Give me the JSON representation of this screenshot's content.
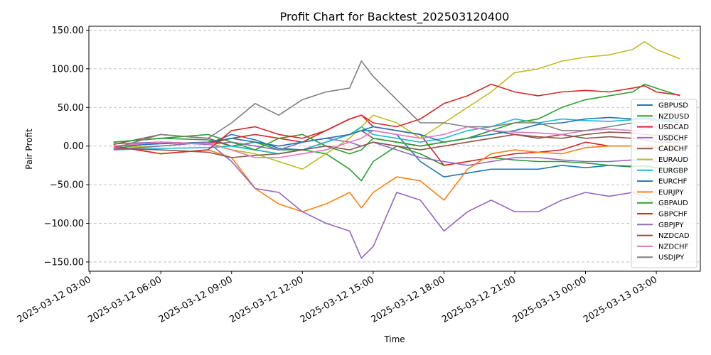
{
  "chart_data": {
    "type": "line",
    "title": "Profit Chart for Backtest_202503120400",
    "xlabel": "Time",
    "ylabel": "Pair Profit",
    "xlim": [
      "2025-03-12 02:57",
      "2025-03-13 04:52"
    ],
    "ylim": [
      -162,
      155
    ],
    "grid": "y",
    "legend": "right",
    "x_ticks": [
      "2025-03-12 03:00",
      "2025-03-12 06:00",
      "2025-03-12 09:00",
      "2025-03-12 12:00",
      "2025-03-12 15:00",
      "2025-03-12 18:00",
      "2025-03-12 21:00",
      "2025-03-13 00:00",
      "2025-03-13 03:00"
    ],
    "y_ticks": [
      "150.00",
      "100.00",
      "50.00",
      "0.00",
      "−50.00",
      "−100.00",
      "−150.00"
    ],
    "y_tick_values": [
      150,
      100,
      50,
      0,
      -50,
      -100,
      -150
    ],
    "x": [
      "2025-03-12 04:00",
      "2025-03-12 06:00",
      "2025-03-12 08:00",
      "2025-03-12 09:00",
      "2025-03-12 10:00",
      "2025-03-12 11:00",
      "2025-03-12 12:00",
      "2025-03-12 13:00",
      "2025-03-12 14:00",
      "2025-03-12 14:30",
      "2025-03-12 15:00",
      "2025-03-12 16:00",
      "2025-03-12 17:00",
      "2025-03-12 18:00",
      "2025-03-12 19:00",
      "2025-03-12 20:00",
      "2025-03-12 21:00",
      "2025-03-12 22:00",
      "2025-03-12 23:00",
      "2025-03-13 00:00",
      "2025-03-13 01:00",
      "2025-03-13 02:00",
      "2025-03-13 02:30",
      "2025-03-13 03:00",
      "2025-03-13 04:00"
    ],
    "series": [
      {
        "name": "GBPUSD",
        "color": "#1f77b4",
        "values": [
          -3,
          5,
          3,
          15,
          8,
          -3,
          -5,
          5,
          15,
          20,
          20,
          15,
          -20,
          -40,
          -35,
          -30,
          -30,
          -30,
          -25,
          -28,
          -25,
          -27,
          -25,
          -28,
          -30
        ]
      },
      {
        "name": "NZDUSD",
        "color": "#2ca02c",
        "values": [
          5,
          10,
          8,
          0,
          5,
          -5,
          -5,
          -10,
          -30,
          -45,
          -20,
          0,
          -10,
          -25,
          -20,
          -15,
          -18,
          -20,
          -20,
          -22,
          -25,
          -26,
          -27,
          -28,
          -30
        ]
      },
      {
        "name": "USDCAD",
        "color": "#d62728",
        "values": [
          0,
          5,
          3,
          10,
          15,
          10,
          5,
          20,
          35,
          40,
          25,
          20,
          15,
          -25,
          -20,
          -15,
          -10,
          -8,
          -5,
          5,
          0,
          0,
          0,
          -2,
          -5
        ]
      },
      {
        "name": "USDCHF",
        "color": "#9467bd",
        "values": [
          3,
          5,
          2,
          5,
          0,
          -5,
          5,
          10,
          5,
          0,
          5,
          -5,
          -15,
          -20,
          -25,
          -20,
          -15,
          -15,
          -18,
          -20,
          -20,
          -18,
          -18,
          -20,
          -25
        ]
      },
      {
        "name": "CADCHF",
        "color": "#8c564b",
        "values": [
          2,
          15,
          10,
          0,
          -5,
          -10,
          -5,
          5,
          15,
          20,
          10,
          5,
          0,
          5,
          10,
          20,
          15,
          10,
          15,
          10,
          12,
          10,
          8,
          5,
          5
        ]
      },
      {
        "name": "EURAUD",
        "color": "#bcbd22",
        "values": [
          -2,
          0,
          5,
          -5,
          -10,
          -20,
          -30,
          -10,
          10,
          25,
          40,
          30,
          10,
          30,
          50,
          70,
          95,
          100,
          110,
          115,
          118,
          125,
          135,
          125,
          113
        ]
      },
      {
        "name": "EURGBP",
        "color": "#17becf",
        "values": [
          -5,
          -3,
          -2,
          0,
          -5,
          -10,
          -5,
          5,
          15,
          25,
          15,
          10,
          5,
          10,
          20,
          25,
          35,
          30,
          35,
          33,
          32,
          34,
          35,
          33,
          30
        ]
      },
      {
        "name": "EURCHF",
        "color": "#1f77b4",
        "values": [
          0,
          3,
          5,
          10,
          5,
          0,
          5,
          10,
          15,
          20,
          25,
          20,
          15,
          5,
          10,
          15,
          20,
          28,
          30,
          35,
          37,
          35,
          36,
          35,
          33
        ]
      },
      {
        "name": "EURJPY",
        "color": "#ff7f0e",
        "values": [
          0,
          -10,
          -5,
          -15,
          -55,
          -75,
          -85,
          -75,
          -60,
          -80,
          -60,
          -40,
          -45,
          -70,
          -30,
          -10,
          -5,
          -8,
          -10,
          -2,
          0,
          0,
          0,
          0,
          0
        ]
      },
      {
        "name": "GBPAUD",
        "color": "#2ca02c",
        "values": [
          5,
          10,
          15,
          5,
          -5,
          10,
          15,
          0,
          -10,
          -5,
          10,
          5,
          0,
          5,
          10,
          20,
          30,
          35,
          50,
          60,
          65,
          70,
          80,
          75,
          65
        ]
      },
      {
        "name": "GBPCHF",
        "color": "#d62728",
        "values": [
          0,
          -10,
          -5,
          20,
          25,
          15,
          10,
          20,
          35,
          40,
          30,
          25,
          35,
          55,
          65,
          80,
          70,
          65,
          70,
          72,
          70,
          75,
          78,
          70,
          66
        ]
      },
      {
        "name": "GBPJPY",
        "color": "#9467bd",
        "values": [
          -5,
          0,
          5,
          -20,
          -55,
          -60,
          -85,
          -100,
          -110,
          -145,
          -130,
          -60,
          -70,
          -110,
          -85,
          -70,
          -85,
          -85,
          -70,
          -60,
          -65,
          -60,
          -65,
          -75,
          -85
        ]
      },
      {
        "name": "NZDCAD",
        "color": "#8c564b",
        "values": [
          -3,
          -5,
          -8,
          -15,
          -12,
          -10,
          -5,
          0,
          -5,
          0,
          5,
          0,
          -5,
          0,
          5,
          10,
          15,
          12,
          10,
          15,
          18,
          17,
          15,
          14,
          15
        ]
      },
      {
        "name": "NZDCHF",
        "color": "#e377c2",
        "values": [
          0,
          5,
          3,
          -5,
          -15,
          -15,
          -10,
          -5,
          5,
          10,
          20,
          15,
          10,
          15,
          25,
          20,
          18,
          17,
          15,
          20,
          22,
          20,
          22,
          25,
          24
        ]
      },
      {
        "name": "USDJPY",
        "color": "#7f7f7f",
        "values": [
          -3,
          15,
          10,
          30,
          55,
          40,
          60,
          70,
          75,
          110,
          90,
          60,
          30,
          30,
          25,
          25,
          30,
          30,
          20,
          20,
          25,
          30,
          30,
          35,
          30
        ]
      }
    ]
  }
}
